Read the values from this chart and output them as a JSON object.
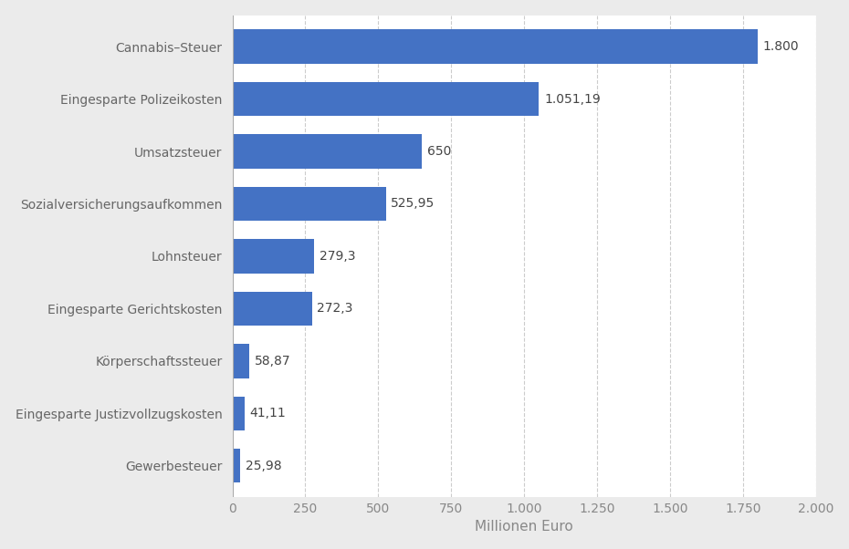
{
  "categories": [
    "Gewerbesteuer",
    "Eingesparte Justizvollzugskosten",
    "Körperschaftssteuer",
    "Eingesparte Gerichtskosten",
    "Lohnsteuer",
    "Sozialversicherungsaufkommen",
    "Umsatzsteuer",
    "Eingesparte Polizeikosten",
    "Cannabis–Steuer"
  ],
  "values": [
    25.98,
    41.11,
    58.87,
    272.3,
    279.3,
    525.95,
    650,
    1051.19,
    1800
  ],
  "labels": [
    "25,98",
    "41,11",
    "58,87",
    "272,3",
    "279,3",
    "525,95",
    "650",
    "1.051,19",
    "1.800"
  ],
  "bar_color": "#4472c4",
  "background_color": "#ebebeb",
  "plot_background": "#ffffff",
  "xlabel": "Millionen Euro",
  "xlim": [
    0,
    2000
  ],
  "xticks": [
    0,
    250,
    500,
    750,
    1000,
    1250,
    1500,
    1750,
    2000
  ],
  "xtick_labels": [
    "0",
    "250",
    "500",
    "750",
    "1.000",
    "1.250",
    "1.500",
    "1.750",
    "2.000"
  ],
  "grid_color": "#cccccc",
  "label_fontsize": 10,
  "tick_fontsize": 10,
  "xlabel_fontsize": 11,
  "bar_height": 0.65
}
